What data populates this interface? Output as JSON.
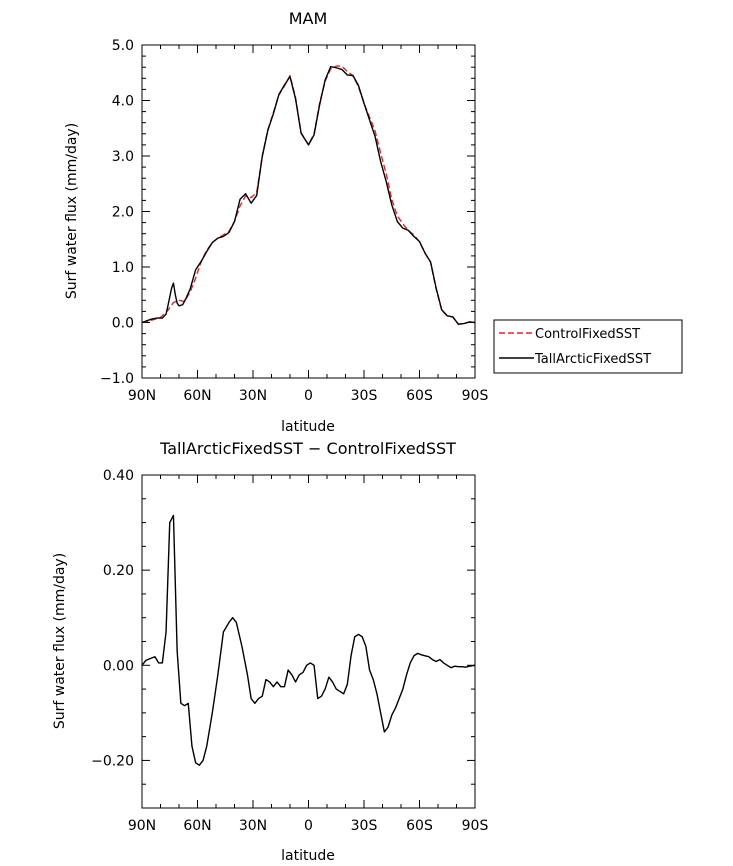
{
  "chart_data": [
    {
      "type": "line",
      "title": "MAM",
      "xlabel": "latitude",
      "ylabel": "Surf water flux (mm/day)",
      "xlim": [
        -90,
        90
      ],
      "ylim": [
        -1.0,
        5.0
      ],
      "xticks": [
        -90,
        -60,
        -30,
        0,
        30,
        60,
        90
      ],
      "xtick_labels": [
        "90N",
        "60N",
        "30N",
        "0",
        "30S",
        "60S",
        "90S"
      ],
      "yticks": [
        -1.0,
        0.0,
        1.0,
        2.0,
        3.0,
        4.0,
        5.0
      ],
      "ytick_labels": [
        "-1.0",
        "0.0",
        "1.0",
        "2.0",
        "3.0",
        "4.0",
        "5.0"
      ],
      "grid": false,
      "legend_position": "right",
      "series": [
        {
          "name": "ControlFixedSST",
          "color": "#e0272a",
          "style": "dashed",
          "x": [
            -90,
            -85,
            -80,
            -76,
            -73,
            -70,
            -67,
            -64,
            -61,
            -58,
            -55,
            -52,
            -49,
            -46,
            -43,
            -40,
            -37,
            -34,
            -31,
            -28,
            -25,
            -22,
            -19,
            -16,
            -13,
            -10,
            -7,
            -4,
            0,
            3,
            6,
            9,
            12,
            15,
            18,
            21,
            24,
            27,
            30,
            33,
            36,
            39,
            42,
            45,
            48,
            51,
            54,
            57,
            60,
            63,
            66,
            69,
            72,
            75,
            78,
            81,
            84,
            87,
            90
          ],
          "y": [
            0.0,
            0.04,
            0.09,
            0.22,
            0.36,
            0.4,
            0.38,
            0.55,
            0.8,
            1.1,
            1.3,
            1.44,
            1.52,
            1.58,
            1.64,
            1.82,
            2.1,
            2.28,
            2.25,
            2.34,
            3.0,
            3.47,
            3.78,
            4.1,
            4.26,
            4.45,
            4.05,
            3.42,
            3.2,
            3.4,
            3.95,
            4.35,
            4.57,
            4.62,
            4.62,
            4.52,
            4.45,
            4.25,
            3.95,
            3.7,
            3.45,
            3.05,
            2.68,
            2.22,
            1.92,
            1.78,
            1.65,
            1.58,
            1.45,
            1.25,
            1.08,
            0.6,
            0.22,
            0.12,
            0.1,
            -0.03,
            -0.02,
            0.01,
            0.0
          ]
        },
        {
          "name": "TallArcticFixedSST",
          "color": "#000000",
          "style": "solid",
          "x": [
            -90,
            -85,
            -82,
            -79,
            -77,
            -76,
            -74,
            -73,
            -72,
            -71,
            -70,
            -68,
            -66,
            -64,
            -61,
            -58,
            -55,
            -52,
            -49,
            -46,
            -43,
            -40,
            -37,
            -34,
            -31,
            -28,
            -25,
            -22,
            -19,
            -16,
            -13,
            -10,
            -7,
            -4,
            0,
            3,
            6,
            9,
            12,
            15,
            18,
            21,
            24,
            27,
            30,
            33,
            36,
            39,
            42,
            45,
            48,
            51,
            54,
            57,
            60,
            63,
            66,
            69,
            72,
            75,
            78,
            81,
            84,
            87,
            90
          ],
          "y": [
            0.0,
            0.06,
            0.08,
            0.08,
            0.15,
            0.3,
            0.62,
            0.71,
            0.5,
            0.35,
            0.3,
            0.32,
            0.45,
            0.6,
            0.95,
            1.1,
            1.28,
            1.44,
            1.52,
            1.55,
            1.62,
            1.82,
            2.22,
            2.32,
            2.15,
            2.29,
            2.99,
            3.46,
            3.76,
            4.11,
            4.28,
            4.43,
            4.03,
            3.41,
            3.2,
            3.38,
            3.92,
            4.37,
            4.61,
            4.59,
            4.56,
            4.46,
            4.45,
            4.27,
            3.95,
            3.65,
            3.35,
            2.9,
            2.54,
            2.12,
            1.82,
            1.7,
            1.66,
            1.55,
            1.46,
            1.25,
            1.09,
            0.62,
            0.23,
            0.12,
            0.1,
            -0.03,
            -0.02,
            0.01,
            0.0
          ]
        }
      ]
    },
    {
      "type": "line",
      "title": "TallArcticFixedSST − ControlFixedSST",
      "xlabel": "latitude",
      "ylabel": "Surf water flux (mm/day)",
      "xlim": [
        -90,
        90
      ],
      "ylim": [
        -0.3,
        0.4
      ],
      "xticks": [
        -90,
        -60,
        -30,
        0,
        30,
        60,
        90
      ],
      "xtick_labels": [
        "90N",
        "60N",
        "30N",
        "0",
        "30S",
        "60S",
        "90S"
      ],
      "yticks": [
        -0.2,
        0.0,
        0.2,
        0.4
      ],
      "ytick_labels": [
        "-0.20",
        "0.00",
        "0.20",
        "0.40"
      ],
      "grid": false,
      "series": [
        {
          "color": "#000000",
          "style": "solid",
          "x": [
            -90,
            -88,
            -85,
            -83,
            -81,
            -79,
            -77,
            -75,
            -73,
            -71,
            -69,
            -67,
            -65,
            -63,
            -61,
            -59,
            -57,
            -55,
            -52,
            -49,
            -46,
            -43,
            -41,
            -39,
            -36,
            -33,
            -31,
            -29,
            -27,
            -25,
            -23,
            -21,
            -19,
            -17,
            -15,
            -13,
            -11,
            -9,
            -7,
            -5,
            -3,
            -1,
            1,
            3,
            5,
            7,
            9,
            11,
            13,
            15,
            17,
            19,
            21,
            23,
            25,
            27,
            29,
            31,
            33,
            35,
            37,
            39,
            41,
            43,
            45,
            47,
            49,
            51,
            53,
            55,
            57,
            59,
            61,
            63,
            65,
            67,
            69,
            71,
            73,
            75,
            77,
            79,
            81,
            83,
            85,
            87,
            90
          ],
          "y": [
            0.0,
            0.01,
            0.015,
            0.018,
            0.005,
            0.005,
            0.07,
            0.3,
            0.315,
            0.03,
            -0.08,
            -0.085,
            -0.08,
            -0.17,
            -0.205,
            -0.21,
            -0.2,
            -0.17,
            -0.1,
            -0.02,
            0.07,
            0.09,
            0.1,
            0.09,
            0.04,
            -0.02,
            -0.07,
            -0.08,
            -0.07,
            -0.065,
            -0.03,
            -0.035,
            -0.045,
            -0.035,
            -0.045,
            -0.045,
            -0.01,
            -0.02,
            -0.035,
            -0.02,
            -0.015,
            0.0,
            0.005,
            0.0,
            -0.07,
            -0.065,
            -0.05,
            -0.025,
            -0.035,
            -0.05,
            -0.055,
            -0.06,
            -0.04,
            0.02,
            0.06,
            0.065,
            0.06,
            0.04,
            -0.01,
            -0.03,
            -0.06,
            -0.1,
            -0.14,
            -0.13,
            -0.105,
            -0.09,
            -0.07,
            -0.05,
            -0.02,
            0.005,
            0.02,
            0.025,
            0.022,
            0.02,
            0.018,
            0.012,
            0.008,
            0.012,
            0.005,
            0.0,
            -0.005,
            -0.002,
            -0.003,
            -0.003,
            -0.004,
            -0.002,
            0.0
          ]
        }
      ]
    }
  ]
}
